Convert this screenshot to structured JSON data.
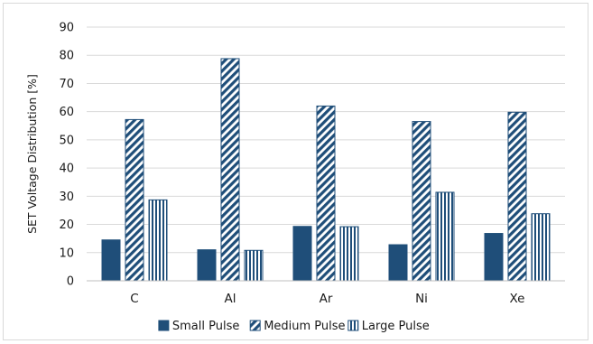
{
  "chart_data": {
    "type": "bar",
    "title": "",
    "xlabel": "",
    "ylabel": "SET Voltage Distribution [%]",
    "ylim": [
      0,
      90
    ],
    "yticks": [
      0,
      10,
      20,
      30,
      40,
      50,
      60,
      70,
      80,
      90
    ],
    "grid": true,
    "legend_position": "bottom",
    "categories": [
      "C",
      "Al",
      "Ar",
      "Ni",
      "Xe"
    ],
    "series": [
      {
        "name": "Small Pulse",
        "values": [
          14.5,
          11,
          19.3,
          12.8,
          16.8
        ],
        "color": "#1f4e79",
        "fill": "solid"
      },
      {
        "name": "Medium Pulse",
        "values": [
          57.2,
          78.8,
          62,
          56.5,
          59.8
        ],
        "color": "#1f4e79",
        "fill": "diagonal-stripes"
      },
      {
        "name": "Large Pulse",
        "values": [
          28.7,
          10.8,
          19.2,
          31.4,
          23.8
        ],
        "color": "#1f4e79",
        "fill": "vertical-stripes"
      }
    ]
  }
}
